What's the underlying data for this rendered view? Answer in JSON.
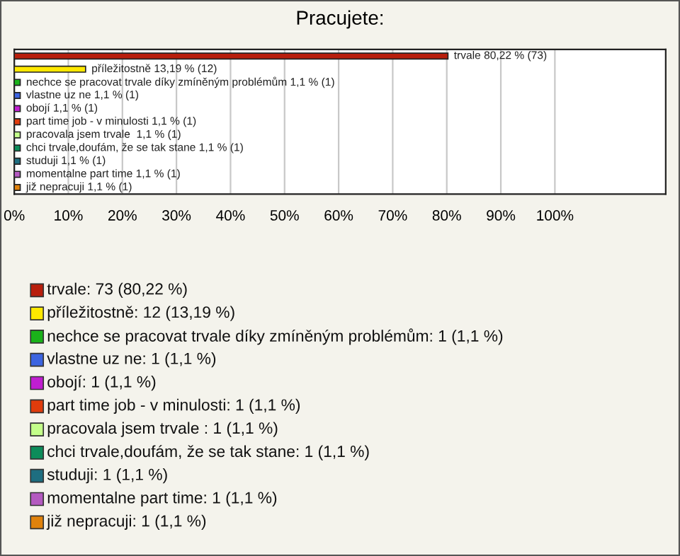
{
  "chart_data": {
    "type": "bar",
    "orientation": "horizontal",
    "title": "Pracujete:",
    "categories": [
      null,
      null,
      null,
      null,
      null,
      null,
      null,
      null,
      null,
      null,
      null
    ],
    "values": [
      80.22,
      13.19,
      1.1,
      1.1,
      1.1,
      1.1,
      1.1,
      1.1,
      1.1,
      1.1,
      1.1
    ],
    "colors": [
      "#b81e0c",
      "#ffe800",
      "#1ab21a",
      "#3c64e0",
      "#c01ed0",
      "#e03c0c",
      "#c4ff8a",
      "#0c8c5a",
      "#1e6e80",
      "#b45ac0",
      "#e0820c"
    ],
    "value_labels": [
      "trvale 80,22 % (73)",
      "příležitostně 13,19 % (12)",
      "nechce se pracovat trvale díky zmíněným problémům 1,1 % (1)",
      "vlastne uz ne 1,1 % (1)",
      "obojí 1,1 % (1)",
      "part time job - v minulosti 1,1 % (1)",
      "pracovala jsem trvale  1,1 % (1)",
      "chci trvale,doufám, že se tak stane 1,1 % (1)",
      "studuji 1,1 % (1)",
      "momentalne part time 1,1 % (1)",
      "již nepracuji 1,1 % (1)"
    ],
    "annotations": [
      "trvale: 73 (80,22 %)",
      "příležitostně: 12 (13,19 %)",
      "nechce se pracovat trvale díky zmíněným problémům: 1 (1,1 %)",
      "vlastne uz ne: 1 (1,1 %)",
      "obojí: 1 (1,1 %)",
      "part time job - v minulosti: 1 (1,1 %)",
      "pracovala jsem trvale : 1 (1,1 %)",
      "chci trvale,doufám, že se tak stane: 1 (1,1 %)",
      "studuji: 1 (1,1 %)",
      "momentalne part time: 1 (1,1 %)",
      "již nepracuji: 1 (1,1 %)"
    ],
    "xlim": [
      0,
      120.5
    ],
    "xticks": [
      {
        "value": 0,
        "label": "0%"
      },
      {
        "value": 10,
        "label": "10%"
      },
      {
        "value": 20,
        "label": "20%"
      },
      {
        "value": 30,
        "label": "30%"
      },
      {
        "value": 40,
        "label": "40%"
      },
      {
        "value": 50,
        "label": "50%"
      },
      {
        "value": 60,
        "label": "60%"
      },
      {
        "value": 70,
        "label": "70%"
      },
      {
        "value": 80,
        "label": "80%"
      },
      {
        "value": 90,
        "label": "90%"
      },
      {
        "value": 100,
        "label": "100%"
      }
    ],
    "grid": "x",
    "tick_labels": "x"
  }
}
